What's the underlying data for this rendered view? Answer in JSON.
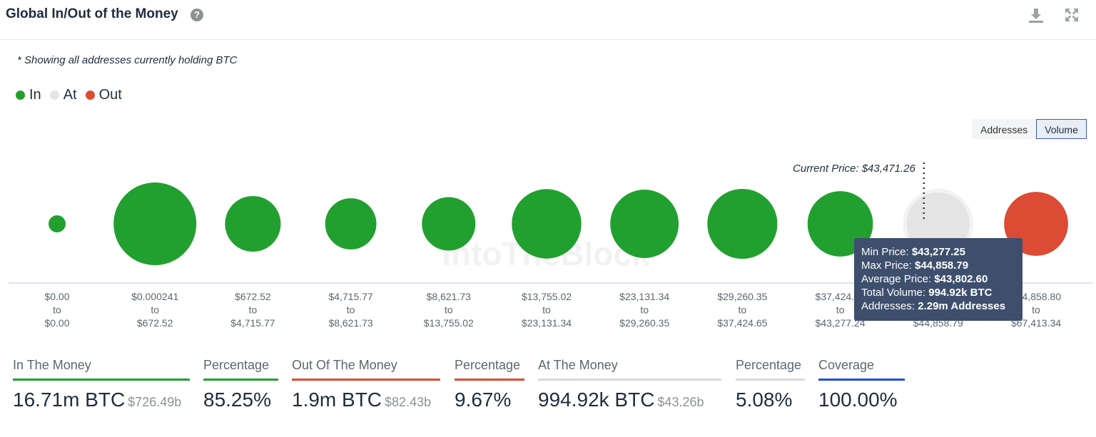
{
  "header": {
    "title": "Global In/Out of the Money",
    "help_symbol": "?"
  },
  "note": "* Showing all addresses currently holding BTC",
  "legend": [
    {
      "label": "In",
      "color": "#22a02f"
    },
    {
      "label": "At",
      "color": "#e4e4e4"
    },
    {
      "label": "Out",
      "color": "#dc4c34"
    }
  ],
  "toggle": {
    "addresses": "Addresses",
    "volume": "Volume",
    "selected": "Volume"
  },
  "chart_data": {
    "type": "bubble",
    "current_price_label": "Current Price: $43,471.26",
    "current_price": 43471.26,
    "watermark": "IntoTheBlock",
    "buckets": [
      {
        "from": "$0.00",
        "to": "$0.00",
        "status": "in",
        "volume_btc": 3
      },
      {
        "from": "$0.000241",
        "to": "$672.52",
        "status": "in",
        "volume_btc": 1720
      },
      {
        "from": "$672.52",
        "to": "$4,715.77",
        "status": "in",
        "volume_btc": 780
      },
      {
        "from": "$4,715.77",
        "to": "$8,621.73",
        "status": "in",
        "volume_btc": 660
      },
      {
        "from": "$8,621.73",
        "to": "$13,755.02",
        "status": "in",
        "volume_btc": 720
      },
      {
        "from": "$13,755.02",
        "to": "$23,131.34",
        "status": "in",
        "volume_btc": 1215
      },
      {
        "from": "$23,131.34",
        "to": "$29,260.35",
        "status": "in",
        "volume_btc": 1175
      },
      {
        "from": "$29,260.35",
        "to": "$37,424.65",
        "status": "in",
        "volume_btc": 1230
      },
      {
        "from": "$37,424.65",
        "to": "$43,277.24",
        "status": "in",
        "volume_btc": 1075
      },
      {
        "from": "$43,277.25",
        "to": "$44,858.79",
        "status": "at",
        "volume_btc": 994.92
      },
      {
        "from": "$44,858.80",
        "to": "$67,413.34",
        "status": "out",
        "volume_btc": 1030
      }
    ],
    "highlighted_index": 9,
    "tooltip": {
      "min_label": "Min Price:",
      "min_value": "$43,277.25",
      "max_label": "Max Price:",
      "max_value": "$44,858.79",
      "avg_label": "Average Price:",
      "avg_value": "$43,802.60",
      "vol_label": "Total Volume:",
      "vol_value": "994.92k BTC",
      "addr_label": "Addresses:",
      "addr_value": "2.29m Addresses"
    },
    "colors": {
      "in": "#22a02f",
      "at": "#e4e4e4",
      "out": "#dc4c34"
    }
  },
  "stats": [
    {
      "label": "In The Money",
      "value": "16.71m BTC",
      "sub": "$726.49b",
      "bar": "#22a02f"
    },
    {
      "label": "Percentage",
      "value": "85.25%",
      "sub": "",
      "bar": "#22a02f"
    },
    {
      "label": "Out Of The Money",
      "value": "1.9m BTC",
      "sub": "$82.43b",
      "bar": "#dc4c34"
    },
    {
      "label": "Percentage",
      "value": "9.67%",
      "sub": "",
      "bar": "#dc4c34"
    },
    {
      "label": "At The Money",
      "value": "994.92k BTC",
      "sub": "$43.26b",
      "bar": "#d9d9d9"
    },
    {
      "label": "Percentage",
      "value": "5.08%",
      "sub": "",
      "bar": "#d9d9d9"
    },
    {
      "label": "Coverage",
      "value": "100.00%",
      "sub": "",
      "bar": "#1f4fd8"
    }
  ]
}
